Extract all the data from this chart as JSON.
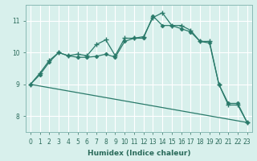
{
  "xlabel": "Humidex (Indice chaleur)",
  "background_color": "#d8f0ec",
  "grid_color": "#ffffff",
  "line_color": "#2a7a6a",
  "xlim": [
    -0.5,
    23.5
  ],
  "ylim": [
    7.5,
    11.5
  ],
  "yticks": [
    8,
    9,
    10,
    11
  ],
  "xticks": [
    0,
    1,
    2,
    3,
    4,
    5,
    6,
    7,
    8,
    9,
    10,
    11,
    12,
    13,
    14,
    15,
    16,
    17,
    18,
    19,
    20,
    21,
    22,
    23
  ],
  "series1_x": [
    0,
    1,
    2,
    3,
    4,
    5,
    6,
    7,
    8,
    9,
    10,
    11,
    12,
    13,
    14,
    15,
    16,
    17,
    18,
    19,
    20,
    21,
    22,
    23
  ],
  "series1_y": [
    9.0,
    9.35,
    9.75,
    10.0,
    9.9,
    9.95,
    9.9,
    10.25,
    10.4,
    9.9,
    10.45,
    10.45,
    10.5,
    11.1,
    11.25,
    10.85,
    10.85,
    10.7,
    10.35,
    10.35,
    9.0,
    8.35,
    8.35,
    7.8
  ],
  "series2_x": [
    0,
    1,
    2,
    3,
    4,
    5,
    6,
    7,
    8,
    9,
    10,
    11,
    12,
    13,
    14,
    15,
    16,
    17,
    18,
    19,
    20,
    21,
    22,
    23
  ],
  "series2_y": [
    9.0,
    9.3,
    9.7,
    10.0,
    9.9,
    9.85,
    9.85,
    9.88,
    9.95,
    9.85,
    10.35,
    10.45,
    10.45,
    11.15,
    10.85,
    10.85,
    10.75,
    10.65,
    10.35,
    10.3,
    9.0,
    8.4,
    8.4,
    7.8
  ],
  "series3_x": [
    0,
    23
  ],
  "series3_y": [
    9.0,
    7.8
  ]
}
